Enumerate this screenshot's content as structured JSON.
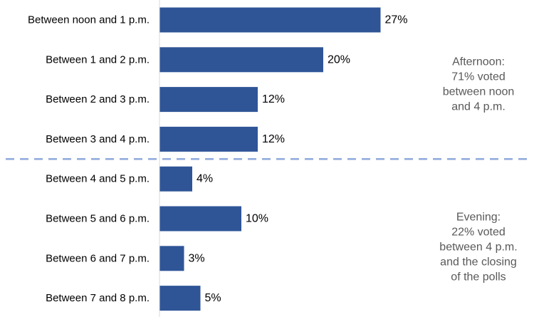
{
  "chart_data": {
    "type": "bar",
    "orientation": "horizontal",
    "categories": [
      "Between noon and 1 p.m.",
      "Between 1 and 2 p.m.",
      "Between 2 and 3 p.m.",
      "Between 3 and 4 p.m.",
      "Between 4 and 5 p.m.",
      "Between 5 and 6 p.m.",
      "Between 6 and 7 p.m.",
      "Between 7 and 8 p.m."
    ],
    "values": [
      27,
      20,
      12,
      12,
      4,
      10,
      3,
      5
    ],
    "value_labels": [
      "27%",
      "20%",
      "12%",
      "12%",
      "4%",
      "10%",
      "3%",
      "5%"
    ],
    "xlim": [
      0,
      40
    ],
    "bar_color": "#2f5597",
    "divider_color": "#8faadc",
    "grid": false,
    "annotations": [
      {
        "group": "afternoon",
        "lines": [
          "Afternoon:",
          "71% voted",
          "between noon",
          "and 4 p.m."
        ]
      },
      {
        "group": "evening",
        "lines": [
          "Evening:",
          "22% voted",
          "between 4 p.m.",
          "and the closing",
          "of the polls"
        ]
      }
    ]
  }
}
